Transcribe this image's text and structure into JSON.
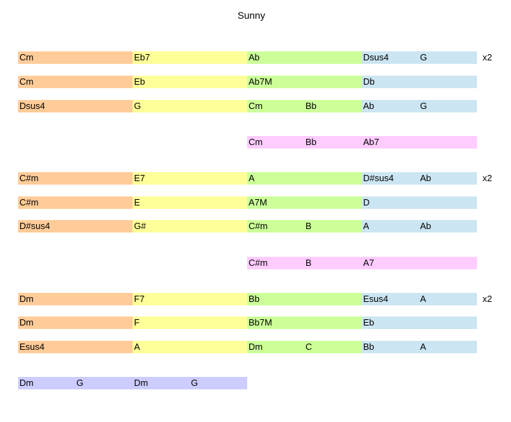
{
  "title": "Sunny",
  "rows": [
    [
      [
        "Cm"
      ],
      [
        "Eb7"
      ],
      [
        "Ab"
      ],
      [
        "Dsus4",
        "G"
      ]
    ],
    [
      [
        "Cm"
      ],
      [
        "Eb"
      ],
      [
        "Ab7M"
      ],
      [
        "Db"
      ]
    ],
    [
      [
        "Dsus4"
      ],
      [
        "G"
      ],
      [
        "Cm",
        "Bb"
      ],
      [
        "Ab",
        "G"
      ]
    ],
    [
      [],
      [],
      [
        "Cm",
        "Bb"
      ],
      [
        "Ab7"
      ]
    ],
    [
      [
        "C#m"
      ],
      [
        "E7"
      ],
      [
        "A"
      ],
      [
        "D#sus4",
        "Ab"
      ]
    ],
    [
      [
        "C#m"
      ],
      [
        "E"
      ],
      [
        "A7M"
      ],
      [
        "D"
      ]
    ],
    [
      [
        "D#sus4"
      ],
      [
        "G#"
      ],
      [
        "C#m",
        "B"
      ],
      [
        "A",
        "Ab"
      ]
    ],
    [
      [],
      [],
      [
        "C#m",
        "B"
      ],
      [
        "A7"
      ]
    ],
    [
      [
        "Dm"
      ],
      [
        "F7"
      ],
      [
        "Bb"
      ],
      [
        "Esus4",
        "A"
      ]
    ],
    [
      [
        "Dm"
      ],
      [
        "F"
      ],
      [
        "Bb7M"
      ],
      [
        "Eb"
      ]
    ],
    [
      [
        "Esus4"
      ],
      [
        "A"
      ],
      [
        "Dm",
        "C"
      ],
      [
        "Bb",
        "A"
      ]
    ],
    [
      [
        "Dm",
        "G"
      ],
      [
        "Dm",
        "G"
      ],
      [],
      []
    ]
  ],
  "repeat_label": "x2",
  "colors": {
    "bar1": "#ffcc99",
    "bar2": "#ffff99",
    "bar3": "#ccff99",
    "bar4": "#cce5f2",
    "alt_ending": "#ffccff",
    "coda": "#ccccff"
  }
}
